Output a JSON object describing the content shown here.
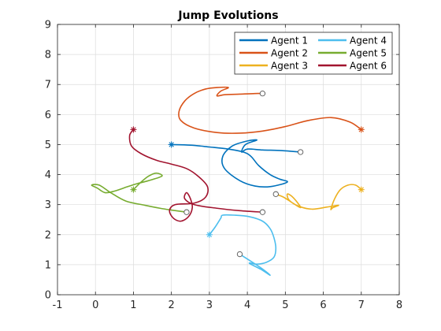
{
  "chart_data": {
    "type": "line",
    "title": "Jump Evolutions",
    "xlabel": "",
    "ylabel": "",
    "xlim": [
      -1,
      8
    ],
    "ylim": [
      0,
      9
    ],
    "xticks": [
      -1,
      0,
      1,
      2,
      3,
      4,
      5,
      6,
      7,
      8
    ],
    "yticks": [
      0,
      1,
      2,
      3,
      4,
      5,
      6,
      7,
      8,
      9
    ],
    "grid": true,
    "legend_position": "top-right",
    "legend_columns": 2,
    "start_marker": "*",
    "end_marker": "o",
    "series": [
      {
        "name": "Agent 1",
        "color": "#0072BD",
        "points": [
          [
            2.0,
            5.0
          ],
          [
            2.5,
            4.98
          ],
          [
            3.0,
            4.92
          ],
          [
            3.5,
            4.85
          ],
          [
            3.9,
            4.75
          ],
          [
            4.1,
            4.6
          ],
          [
            4.3,
            4.3
          ],
          [
            4.6,
            4.0
          ],
          [
            4.85,
            3.85
          ],
          [
            5.05,
            3.75
          ],
          [
            4.6,
            3.6
          ],
          [
            4.2,
            3.62
          ],
          [
            3.8,
            3.8
          ],
          [
            3.4,
            4.2
          ],
          [
            3.35,
            4.6
          ],
          [
            3.6,
            4.95
          ],
          [
            4.0,
            5.12
          ],
          [
            4.25,
            5.15
          ],
          [
            3.95,
            5.0
          ],
          [
            3.85,
            4.75
          ],
          [
            4.0,
            4.85
          ],
          [
            4.4,
            4.82
          ],
          [
            4.9,
            4.8
          ],
          [
            5.4,
            4.75
          ]
        ]
      },
      {
        "name": "Agent 2",
        "color": "#D95319",
        "points": [
          [
            7.0,
            5.5
          ],
          [
            6.7,
            5.75
          ],
          [
            6.2,
            5.9
          ],
          [
            5.6,
            5.8
          ],
          [
            5.0,
            5.6
          ],
          [
            4.4,
            5.45
          ],
          [
            3.8,
            5.38
          ],
          [
            3.2,
            5.4
          ],
          [
            2.6,
            5.55
          ],
          [
            2.25,
            5.8
          ],
          [
            2.2,
            6.1
          ],
          [
            2.35,
            6.45
          ],
          [
            2.6,
            6.7
          ],
          [
            2.9,
            6.85
          ],
          [
            3.2,
            6.9
          ],
          [
            3.5,
            6.9
          ],
          [
            3.3,
            6.78
          ],
          [
            3.2,
            6.62
          ],
          [
            3.4,
            6.66
          ],
          [
            3.8,
            6.68
          ],
          [
            4.2,
            6.7
          ],
          [
            4.4,
            6.7
          ]
        ]
      },
      {
        "name": "Agent 3",
        "color": "#EDB120",
        "points": [
          [
            7.0,
            3.5
          ],
          [
            6.85,
            3.65
          ],
          [
            6.65,
            3.65
          ],
          [
            6.45,
            3.5
          ],
          [
            6.3,
            3.2
          ],
          [
            6.2,
            2.85
          ],
          [
            6.25,
            2.9
          ],
          [
            6.4,
            2.98
          ],
          [
            6.1,
            2.92
          ],
          [
            5.7,
            2.85
          ],
          [
            5.35,
            2.95
          ],
          [
            5.1,
            3.15
          ],
          [
            5.05,
            3.35
          ],
          [
            5.15,
            3.3
          ],
          [
            5.3,
            3.1
          ],
          [
            5.4,
            2.9
          ],
          [
            5.2,
            3.05
          ],
          [
            4.95,
            3.25
          ],
          [
            4.75,
            3.35
          ]
        ]
      },
      {
        "name": "Agent 4",
        "color": "#4DBEEE",
        "points": [
          [
            3.0,
            2.0
          ],
          [
            3.15,
            2.25
          ],
          [
            3.3,
            2.55
          ],
          [
            3.35,
            2.65
          ],
          [
            3.65,
            2.65
          ],
          [
            4.05,
            2.6
          ],
          [
            4.4,
            2.45
          ],
          [
            4.6,
            2.2
          ],
          [
            4.7,
            1.9
          ],
          [
            4.75,
            1.55
          ],
          [
            4.7,
            1.25
          ],
          [
            4.5,
            1.08
          ],
          [
            4.25,
            1.02
          ],
          [
            4.05,
            1.05
          ],
          [
            4.35,
            0.85
          ],
          [
            4.6,
            0.65
          ],
          [
            4.35,
            0.9
          ],
          [
            4.05,
            1.15
          ],
          [
            3.8,
            1.35
          ]
        ]
      },
      {
        "name": "Agent 5",
        "color": "#77AC30",
        "points": [
          [
            1.0,
            3.5
          ],
          [
            1.2,
            3.75
          ],
          [
            1.4,
            3.95
          ],
          [
            1.6,
            4.05
          ],
          [
            1.75,
            3.95
          ],
          [
            1.4,
            3.8
          ],
          [
            1.1,
            3.7
          ],
          [
            0.85,
            3.6
          ],
          [
            0.5,
            3.45
          ],
          [
            0.25,
            3.4
          ],
          [
            0.05,
            3.55
          ],
          [
            -0.1,
            3.65
          ],
          [
            0.1,
            3.65
          ],
          [
            0.4,
            3.4
          ],
          [
            0.8,
            3.12
          ],
          [
            1.3,
            2.98
          ],
          [
            1.7,
            2.88
          ],
          [
            2.0,
            2.82
          ],
          [
            2.4,
            2.75
          ]
        ]
      },
      {
        "name": "Agent 6",
        "color": "#A2142F",
        "points": [
          [
            1.0,
            5.5
          ],
          [
            0.9,
            5.3
          ],
          [
            0.95,
            4.95
          ],
          [
            1.2,
            4.7
          ],
          [
            1.6,
            4.48
          ],
          [
            2.0,
            4.35
          ],
          [
            2.4,
            4.2
          ],
          [
            2.7,
            3.95
          ],
          [
            2.95,
            3.6
          ],
          [
            2.9,
            3.25
          ],
          [
            2.6,
            3.05
          ],
          [
            2.1,
            3.0
          ],
          [
            1.95,
            2.8
          ],
          [
            2.05,
            2.55
          ],
          [
            2.25,
            2.45
          ],
          [
            2.45,
            2.6
          ],
          [
            2.55,
            2.9
          ],
          [
            2.5,
            3.2
          ],
          [
            2.4,
            3.4
          ],
          [
            2.35,
            3.2
          ],
          [
            2.6,
            3.0
          ],
          [
            3.2,
            2.88
          ],
          [
            3.8,
            2.8
          ],
          [
            4.4,
            2.75
          ]
        ]
      }
    ]
  }
}
